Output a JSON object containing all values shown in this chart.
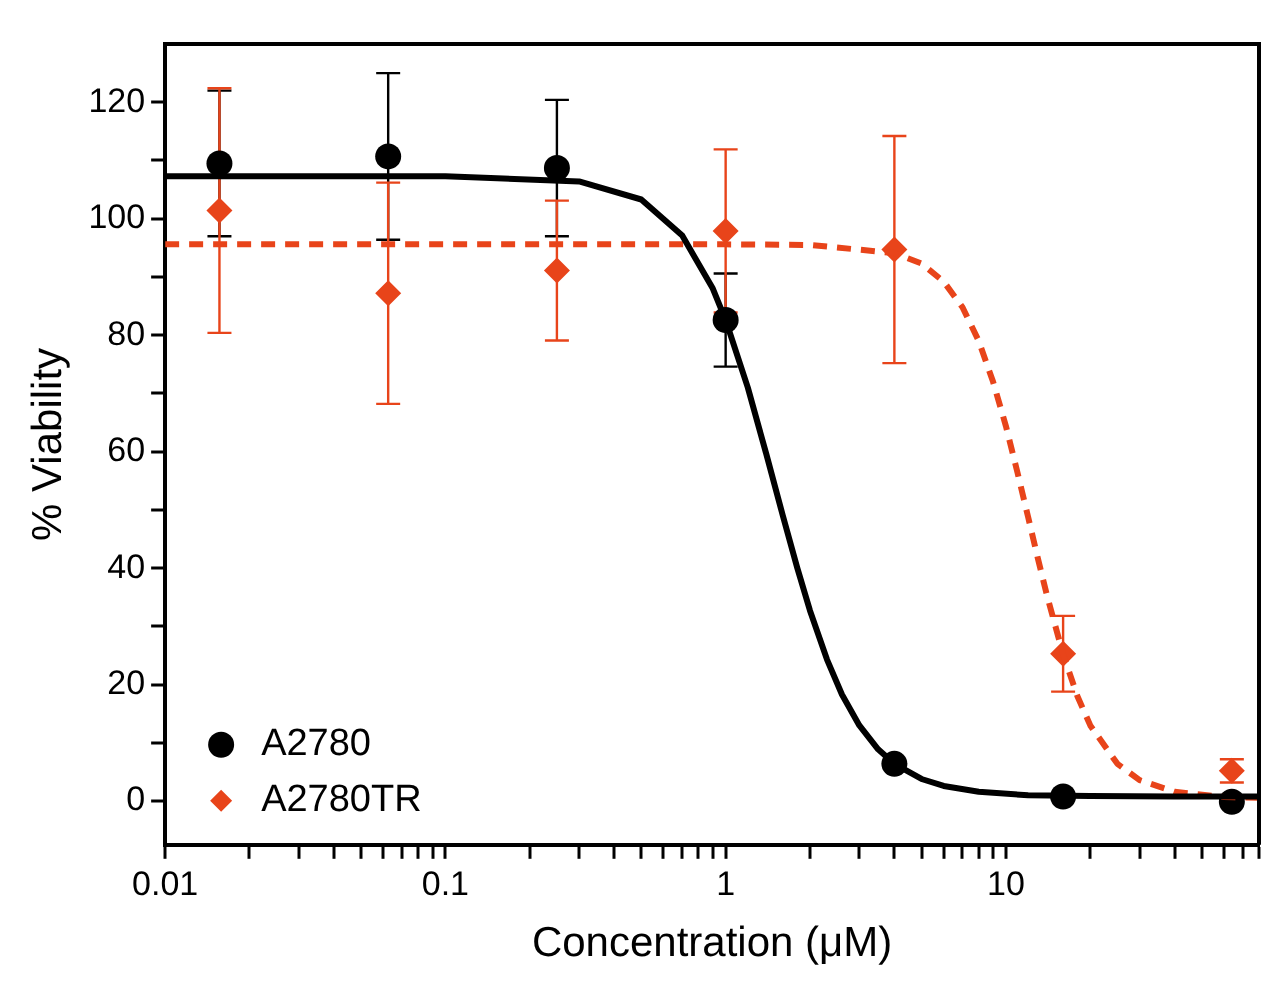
{
  "chart_data": {
    "type": "scatter",
    "xlabel": "Concentration (μM)",
    "ylabel": "% Viability",
    "log": "x",
    "grid": false,
    "legend": "bottom left",
    "xlim": [
      0.01,
      80
    ],
    "ylim": [
      -7.5,
      130
    ],
    "xticks": [
      0.01,
      {
        "value": 0.02,
        "label": null
      },
      {
        "value": 0.03,
        "label": null
      },
      {
        "value": 0.04,
        "label": null
      },
      {
        "value": 0.05,
        "label": null
      },
      {
        "value": 0.06,
        "label": null
      },
      {
        "value": 0.07,
        "label": null
      },
      {
        "value": 0.08,
        "label": null
      },
      {
        "value": 0.09,
        "label": null
      },
      0.1,
      {
        "value": 0.2,
        "label": null
      },
      {
        "value": 0.3,
        "label": null
      },
      {
        "value": 0.4,
        "label": null
      },
      {
        "value": 0.5,
        "label": null
      },
      {
        "value": 0.6,
        "label": null
      },
      {
        "value": 0.7,
        "label": null
      },
      {
        "value": 0.8,
        "label": null
      },
      {
        "value": 0.9,
        "label": null
      },
      1,
      {
        "value": 2,
        "label": null
      },
      {
        "value": 3,
        "label": null
      },
      {
        "value": 4,
        "label": null
      },
      {
        "value": 5,
        "label": null
      },
      {
        "value": 6,
        "label": null
      },
      {
        "value": 7,
        "label": null
      },
      {
        "value": 8,
        "label": null
      },
      {
        "value": 9,
        "label": null
      },
      10,
      {
        "value": 20,
        "label": null
      },
      {
        "value": 30,
        "label": null
      },
      {
        "value": 40,
        "label": null
      },
      {
        "value": 50,
        "label": null
      },
      {
        "value": 60,
        "label": null
      },
      {
        "value": 70,
        "label": null
      },
      {
        "value": 80,
        "label": null
      }
    ],
    "yticks": [
      0,
      {
        "value": 10,
        "label": null
      },
      20,
      {
        "value": 30,
        "label": null
      },
      40,
      {
        "value": 50,
        "label": null
      },
      60,
      {
        "value": 70,
        "label": null
      },
      80,
      {
        "value": 90,
        "label": null
      },
      100,
      {
        "value": 110,
        "label": null
      },
      120
    ],
    "series": [
      {
        "type": "line",
        "color": "#000000",
        "line_style": "solid",
        "marker": "none",
        "x": [
          0.01,
          0.1,
          0.3,
          0.5,
          0.7,
          0.9,
          1.0,
          1.2,
          1.4,
          1.6,
          1.8,
          2.0,
          2.3,
          2.6,
          3.0,
          3.5,
          4,
          5,
          6,
          8,
          12,
          20,
          40,
          80
        ],
        "values": [
          107.3,
          107.3,
          106.4,
          103.3,
          97.1,
          88.0,
          82.6,
          71.0,
          59.4,
          49.0,
          40.1,
          32.7,
          24.3,
          18.3,
          13.0,
          8.9,
          6.4,
          3.8,
          2.6,
          1.6,
          1.0,
          0.9,
          0.8,
          0.8
        ]
      },
      {
        "type": "line",
        "color": "#e8441a",
        "line_style": "dashed",
        "marker": "none",
        "x": [
          0.01,
          1,
          2,
          4,
          5,
          6,
          7,
          8,
          9,
          10,
          11,
          12,
          13,
          14,
          16,
          18,
          20,
          25,
          30,
          40,
          60,
          80
        ],
        "values": [
          95.6,
          95.6,
          95.5,
          94.1,
          92.3,
          89.2,
          84.8,
          79.0,
          72.0,
          64.4,
          56.4,
          48.8,
          41.7,
          35.4,
          25.2,
          18.0,
          13.0,
          6.4,
          3.6,
          1.6,
          0.7,
          0.6
        ]
      },
      {
        "name": "A2780",
        "type": "scatter",
        "color": "#000000",
        "marker": "circle",
        "x": [
          0.015625,
          0.0625,
          0.25,
          1,
          4,
          16,
          64
        ],
        "values": [
          109.5,
          110.7,
          108.7,
          82.6,
          6.4,
          0.8,
          -0.1
        ],
        "errors": [
          12.5,
          14.3,
          11.7,
          8,
          null,
          null,
          null
        ]
      },
      {
        "name": "A2780TR",
        "type": "scatter",
        "color": "#e8441a",
        "marker": "diamond",
        "x": [
          0.015625,
          0.0625,
          0.25,
          1,
          4,
          16,
          64
        ],
        "values": [
          101.4,
          87.2,
          91.1,
          97.9,
          94.7,
          25.3,
          5.2
        ],
        "errors": [
          21,
          19,
          12,
          14,
          19.5,
          6.5,
          2
        ]
      }
    ]
  }
}
